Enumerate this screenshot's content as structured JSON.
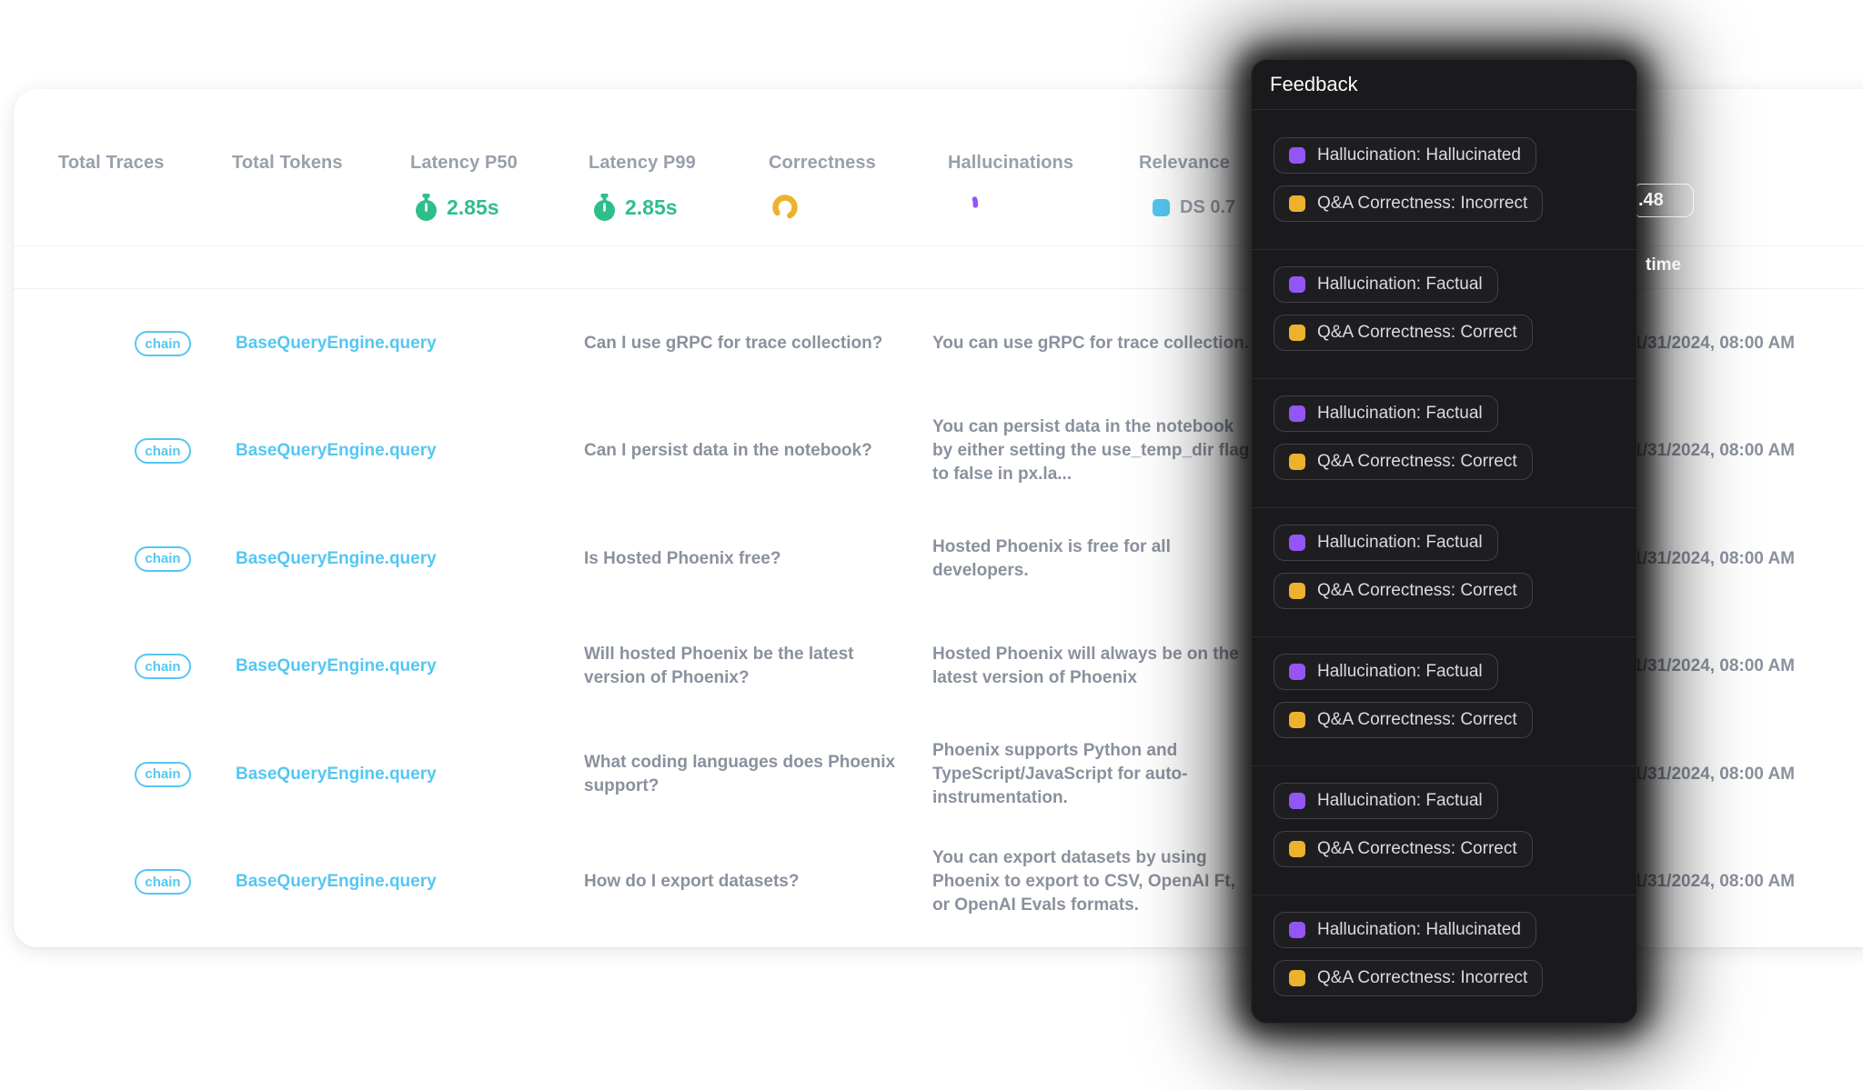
{
  "metrics": {
    "total_traces_label": "Total Traces",
    "total_tokens_label": "Total Tokens",
    "latency_p50_label": "Latency P50",
    "latency_p50_value": "2.85s",
    "latency_p99_label": "Latency P99",
    "latency_p99_value": "2.85s",
    "correctness_label": "Correctness",
    "hallucinations_label": "Hallucinations",
    "relevance_label": "Relevance",
    "relevance_value": "DS 0.7"
  },
  "table": {
    "time_column_label": "time",
    "partial_score_value": ".48",
    "rows": [
      {
        "kind": "chain",
        "name": "BaseQueryEngine.query",
        "question": "Can I use gRPC for trace collection?",
        "answer": "You can use gRPC for trace collection.",
        "timestamp": "1/31/2024, 08:00 AM"
      },
      {
        "kind": "chain",
        "name": "BaseQueryEngine.query",
        "question": "Can I persist data in the notebook?",
        "answer": "You can persist data in the notebook by either setting the use_temp_dir flag to false in px.la...",
        "timestamp": "1/31/2024, 08:00 AM"
      },
      {
        "kind": "chain",
        "name": "BaseQueryEngine.query",
        "question": "Is Hosted Phoenix free?",
        "answer": "Hosted Phoenix is free for all developers.",
        "timestamp": "1/31/2024, 08:00 AM"
      },
      {
        "kind": "chain",
        "name": "BaseQueryEngine.query",
        "question": "Will hosted Phoenix be the latest version of Phoenix?",
        "answer": "Hosted Phoenix will always be on the latest version of Phoenix",
        "timestamp": "1/31/2024, 08:00 AM"
      },
      {
        "kind": "chain",
        "name": "BaseQueryEngine.query",
        "question": "What coding languages does Phoenix support?",
        "answer": "Phoenix supports Python and TypeScript/JavaScript for auto-instrumentation.",
        "timestamp": "1/31/2024, 08:00 AM"
      },
      {
        "kind": "chain",
        "name": "BaseQueryEngine.query",
        "question": "How do I export datasets?",
        "answer": "You can export datasets by using Phoenix to export to CSV, OpenAI Ft, or OpenAI Evals formats.",
        "timestamp": "1/31/2024, 08:00 AM"
      }
    ]
  },
  "feedback_panel": {
    "title": "Feedback",
    "groups": [
      {
        "hallucination": "Hallucination: Hallucinated",
        "qa_correctness": "Q&A Correctness: Incorrect"
      },
      {
        "hallucination": "Hallucination: Factual",
        "qa_correctness": "Q&A Correctness: Correct"
      },
      {
        "hallucination": "Hallucination: Factual",
        "qa_correctness": "Q&A Correctness: Correct"
      },
      {
        "hallucination": "Hallucination: Factual",
        "qa_correctness": "Q&A Correctness: Correct"
      },
      {
        "hallucination": "Hallucination: Factual",
        "qa_correctness": "Q&A Correctness: Correct"
      },
      {
        "hallucination": "Hallucination: Factual",
        "qa_correctness": "Q&A Correctness: Correct"
      },
      {
        "hallucination": "Hallucination: Hallucinated",
        "qa_correctness": "Q&A Correctness: Incorrect"
      }
    ]
  },
  "colors": {
    "accent_cyan": "#54c7f2",
    "green": "#2fbe8a",
    "amber": "#ecb22e",
    "purple": "#9355f4",
    "panel_background": "#1a1a1d"
  }
}
